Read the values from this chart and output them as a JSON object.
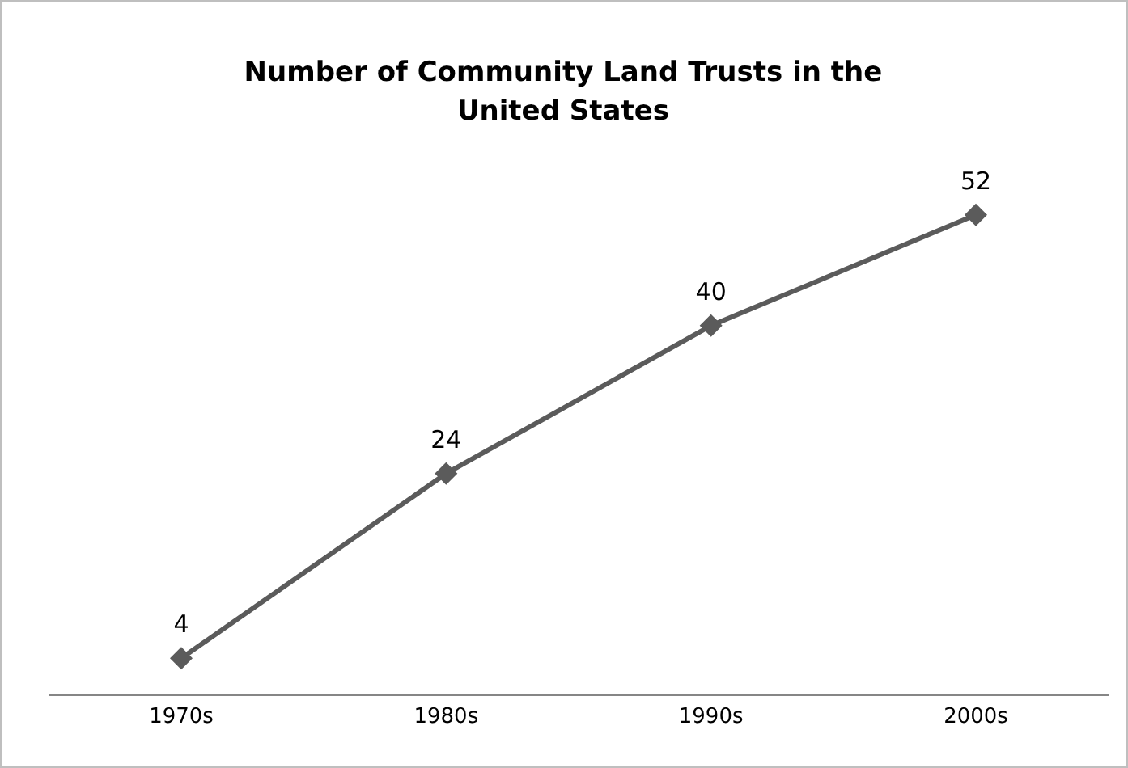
{
  "chart_data": {
    "type": "line",
    "title": "Number of Community Land Trusts in the United States",
    "categories": [
      "1970s",
      "1980s",
      "1990s",
      "2000s"
    ],
    "series": [
      {
        "color": "#5b5b5b",
        "values": [
          4,
          24,
          40,
          52
        ]
      }
    ],
    "data_labels": true,
    "marker": "diamond",
    "line_style": "solid"
  }
}
